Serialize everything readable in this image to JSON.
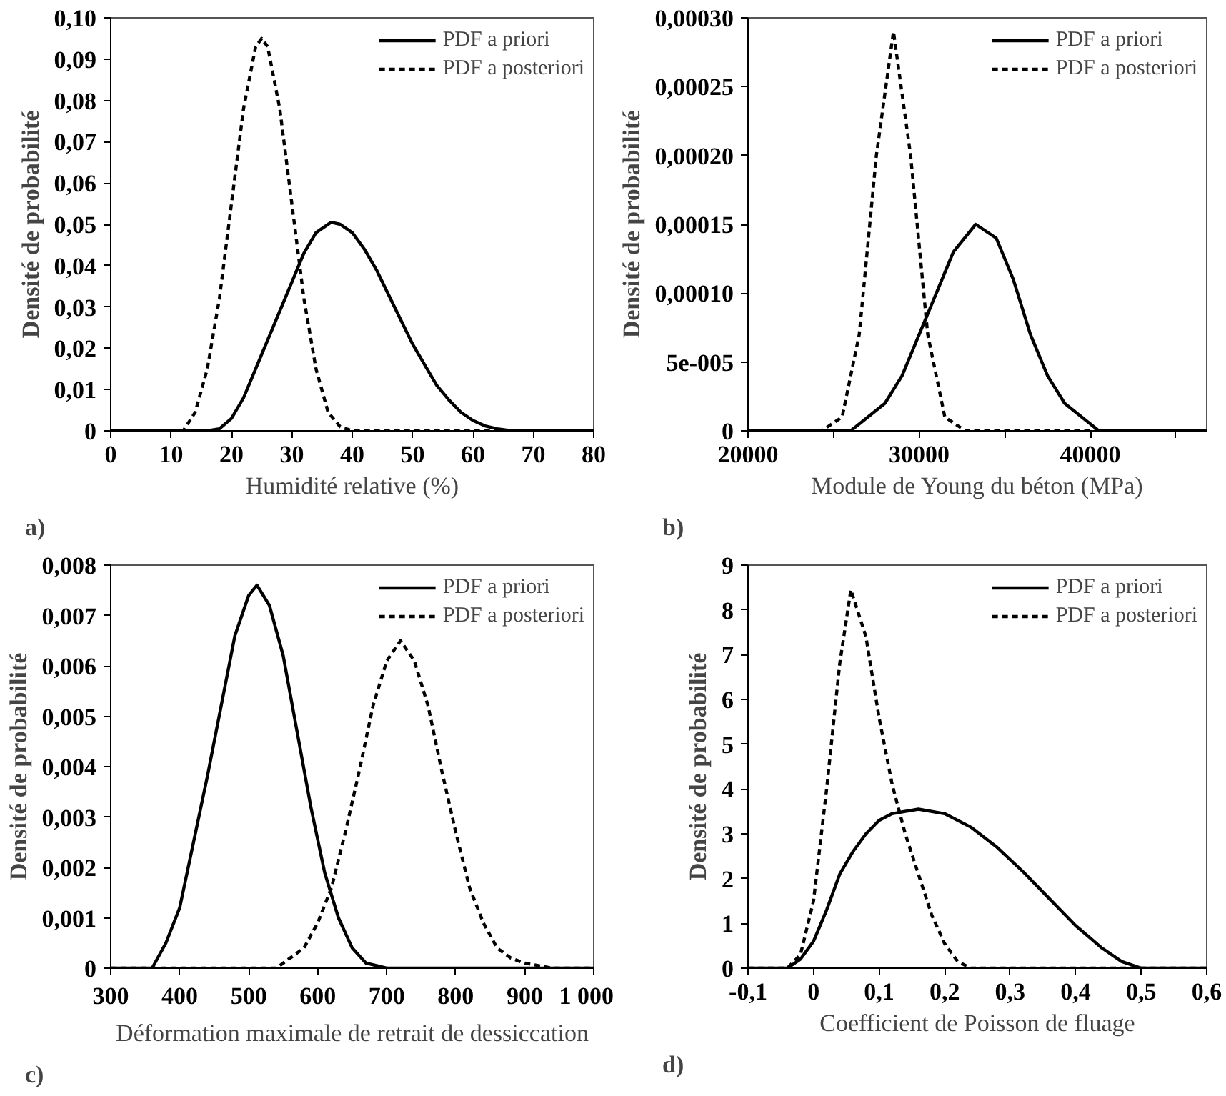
{
  "chart_data": [
    {
      "type": "line",
      "xlabel": "Humidité relative (%)",
      "ylabel": "Densité de probabilité",
      "annotations": [
        "a)"
      ],
      "legend": "top right",
      "grid": false,
      "xlim": [
        0,
        80
      ],
      "xticks": [
        0,
        10,
        20,
        30,
        40,
        50,
        60,
        70,
        80
      ],
      "ylim": [
        0,
        0.1
      ],
      "yticks": [
        {
          "value": 0,
          "label": "0"
        },
        {
          "value": 0.01,
          "label": "0,01"
        },
        {
          "value": 0.02,
          "label": "0,02"
        },
        {
          "value": 0.03,
          "label": "0,03"
        },
        {
          "value": 0.04,
          "label": "0,04"
        },
        {
          "value": 0.05,
          "label": "0,05"
        },
        {
          "value": 0.06,
          "label": "0,06"
        },
        {
          "value": 0.07,
          "label": "0,07"
        },
        {
          "value": 0.08,
          "label": "0,08"
        },
        {
          "value": 0.09,
          "label": "0,09"
        },
        {
          "value": 0.1,
          "label": "0,10"
        }
      ],
      "series": [
        {
          "name": "PDF a priori",
          "color": "#000000",
          "line_style": "solid",
          "x": [
            0,
            16,
            18,
            20,
            22,
            24,
            26,
            28,
            30,
            32,
            34,
            36.5,
            38,
            40,
            42,
            44,
            46,
            48,
            50,
            52,
            54,
            56,
            58,
            60,
            62,
            64,
            66,
            70,
            80
          ],
          "values": [
            0,
            0,
            0.0005,
            0.003,
            0.008,
            0.015,
            0.022,
            0.029,
            0.036,
            0.043,
            0.048,
            0.0505,
            0.05,
            0.048,
            0.044,
            0.039,
            0.033,
            0.027,
            0.021,
            0.016,
            0.011,
            0.0075,
            0.0045,
            0.0025,
            0.0012,
            0.0005,
            0.0001,
            0,
            0
          ]
        },
        {
          "name": "PDF a posteriori",
          "color": "#000000",
          "line_style": "dashed",
          "x": [
            0,
            12,
            14,
            16,
            18,
            20,
            22,
            24,
            25,
            26,
            28,
            30,
            32,
            34,
            36,
            38,
            40,
            80
          ],
          "values": [
            0,
            0,
            0.0045,
            0.015,
            0.032,
            0.055,
            0.078,
            0.093,
            0.095,
            0.093,
            0.078,
            0.055,
            0.032,
            0.015,
            0.0045,
            0.001,
            0,
            0
          ]
        }
      ]
    },
    {
      "type": "line",
      "xlabel": "Module de Young du béton (MPa)",
      "ylabel": "Densité de probabilité",
      "annotations": [
        "b)"
      ],
      "legend": "top right",
      "grid": false,
      "xlim": [
        20000,
        46800
      ],
      "xticks": [
        20000,
        {
          "value": 25000,
          "label": null
        },
        30000,
        {
          "value": 35000,
          "label": null
        },
        40000,
        {
          "value": 45000,
          "label": null
        }
      ],
      "ylim": [
        0,
        0.0003
      ],
      "yticks": [
        {
          "value": 0,
          "label": "0"
        },
        {
          "value": 5e-05,
          "label": "5e-005"
        },
        {
          "value": 0.0001,
          "label": "0,00010"
        },
        {
          "value": 0.00015,
          "label": "0,00015"
        },
        {
          "value": 0.0002,
          "label": "0,00020"
        },
        {
          "value": 0.00025,
          "label": "0,00025"
        },
        {
          "value": 0.0003,
          "label": "0,00030"
        }
      ],
      "series": [
        {
          "name": "PDF a priori",
          "color": "#000000",
          "line_style": "solid",
          "x": [
            20000,
            25000,
            26000,
            27000,
            28000,
            29000,
            30000,
            31000,
            32000,
            33300,
            34500,
            35500,
            36500,
            37500,
            38500,
            39500,
            40500,
            42000,
            46800
          ],
          "values": [
            0,
            0,
            0,
            1e-05,
            2e-05,
            4e-05,
            7e-05,
            0.0001,
            0.00013,
            0.00015,
            0.00014,
            0.00011,
            7e-05,
            4e-05,
            2e-05,
            1e-05,
            0,
            0,
            0
          ]
        },
        {
          "name": "PDF a posteriori",
          "color": "#000000",
          "line_style": "dashed",
          "x": [
            20000,
            24300,
            25500,
            26500,
            27500,
            28500,
            29500,
            30500,
            31500,
            32700,
            46800
          ],
          "values": [
            0,
            0,
            1e-05,
            7e-05,
            0.0002,
            0.00029,
            0.0002,
            7e-05,
            1e-05,
            0,
            0
          ]
        }
      ]
    },
    {
      "type": "line",
      "xlabel": "Déformation maximale de retrait de dessiccation",
      "ylabel": "Densité de probabilité",
      "annotations": [
        "c)"
      ],
      "legend": "top right",
      "grid": false,
      "xlim": [
        300,
        1000
      ],
      "xticks": [
        300,
        400,
        500,
        600,
        700,
        800,
        900,
        {
          "value": 1000,
          "label": "1 000"
        }
      ],
      "ylim": [
        0,
        0.008
      ],
      "yticks": [
        {
          "value": 0,
          "label": "0"
        },
        {
          "value": 0.001,
          "label": "0,001"
        },
        {
          "value": 0.002,
          "label": "0,002"
        },
        {
          "value": 0.003,
          "label": "0,003"
        },
        {
          "value": 0.004,
          "label": "0,004"
        },
        {
          "value": 0.005,
          "label": "0,005"
        },
        {
          "value": 0.006,
          "label": "0,006"
        },
        {
          "value": 0.007,
          "label": "0,007"
        },
        {
          "value": 0.008,
          "label": "0,008"
        }
      ],
      "series": [
        {
          "name": "PDF a priori",
          "color": "#000000",
          "line_style": "solid",
          "x": [
            300,
            360,
            380,
            400,
            420,
            440,
            460,
            480,
            500,
            512,
            530,
            550,
            570,
            590,
            610,
            630,
            650,
            670,
            700,
            1000
          ],
          "values": [
            0,
            0,
            0.0005,
            0.0012,
            0.0025,
            0.0038,
            0.0052,
            0.0066,
            0.0074,
            0.0076,
            0.0072,
            0.0062,
            0.0047,
            0.0032,
            0.0019,
            0.001,
            0.0004,
            0.0001,
            0,
            0
          ]
        },
        {
          "name": "PDF a posteriori",
          "color": "#000000",
          "line_style": "dashed",
          "x": [
            300,
            540,
            560,
            580,
            600,
            620,
            640,
            660,
            680,
            700,
            720,
            740,
            760,
            780,
            800,
            820,
            840,
            860,
            880,
            900,
            940,
            1000
          ],
          "values": [
            0,
            0,
            0.0002,
            0.0004,
            0.0009,
            0.0016,
            0.0027,
            0.0039,
            0.0052,
            0.0061,
            0.0065,
            0.0061,
            0.0052,
            0.0039,
            0.0027,
            0.0016,
            0.0009,
            0.0004,
            0.0002,
            0.0001,
            0,
            0
          ]
        }
      ]
    },
    {
      "type": "line",
      "xlabel": "Coefficient de Poisson de fluage",
      "ylabel": "Densité de probabilité",
      "annotations": [
        "d)"
      ],
      "legend": "top right",
      "grid": false,
      "xlim": [
        -0.1,
        0.6
      ],
      "xticks": [
        {
          "value": -0.1,
          "label": "-0,1"
        },
        0,
        {
          "value": 0.1,
          "label": "0,1"
        },
        {
          "value": 0.2,
          "label": "0,2"
        },
        {
          "value": 0.3,
          "label": "0,3"
        },
        {
          "value": 0.4,
          "label": "0,4"
        },
        {
          "value": 0.5,
          "label": "0,5"
        },
        {
          "value": 0.6,
          "label": "0,6"
        }
      ],
      "ylim": [
        0,
        9
      ],
      "yticks": [
        0,
        1,
        2,
        3,
        4,
        5,
        6,
        7,
        8,
        9
      ],
      "series": [
        {
          "name": "PDF a priori",
          "color": "#000000",
          "line_style": "solid",
          "x": [
            -0.1,
            -0.04,
            -0.02,
            0,
            0.02,
            0.04,
            0.06,
            0.08,
            0.1,
            0.12,
            0.16,
            0.2,
            0.24,
            0.28,
            0.32,
            0.36,
            0.4,
            0.44,
            0.47,
            0.5,
            0.6
          ],
          "values": [
            0,
            0,
            0.2,
            0.6,
            1.3,
            2.1,
            2.6,
            3.0,
            3.3,
            3.45,
            3.55,
            3.45,
            3.15,
            2.7,
            2.15,
            1.55,
            0.95,
            0.45,
            0.15,
            0,
            0
          ]
        },
        {
          "name": "PDF a posteriori",
          "color": "#000000",
          "line_style": "dashed",
          "x": [
            -0.1,
            -0.04,
            -0.02,
            0,
            0.02,
            0.04,
            0.057,
            0.08,
            0.1,
            0.12,
            0.14,
            0.16,
            0.18,
            0.2,
            0.22,
            0.24,
            0.6
          ],
          "values": [
            0,
            0,
            0.3,
            1.5,
            4.0,
            6.8,
            8.45,
            7.4,
            5.6,
            4.1,
            3.0,
            2.1,
            1.2,
            0.55,
            0.15,
            0,
            0
          ]
        }
      ]
    }
  ]
}
